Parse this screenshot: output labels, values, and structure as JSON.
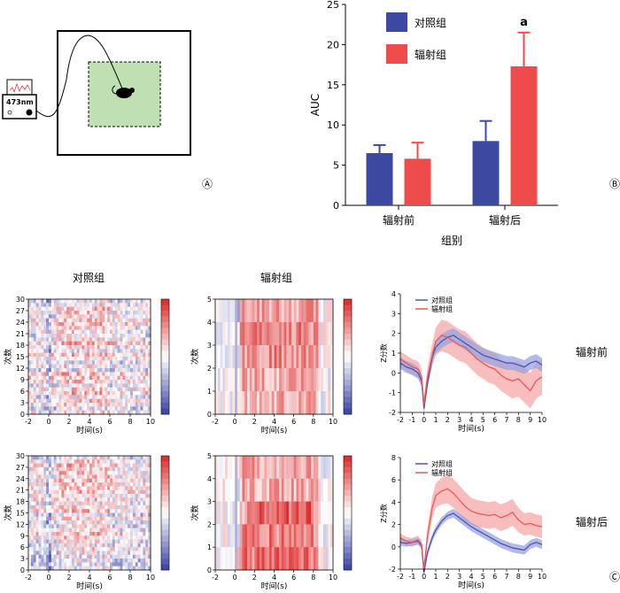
{
  "panels": {
    "A": {
      "panel_label": "Ⓐ",
      "device_label": "473nm",
      "colors": {
        "arena_fill": "#ffffff",
        "zone_fill": "#bfe0b2",
        "outline": "#000000",
        "mouse": "#000000"
      },
      "icons": [
        "recording-device-icon",
        "optic-fiber-icon",
        "mouse-icon",
        "signal-trace-icon"
      ]
    },
    "B": {
      "panel_label": "Ⓑ"
    },
    "C": {
      "panel_label": "Ⓒ",
      "titles": {
        "control": "对照组",
        "radiation": "辐射组"
      },
      "row_labels": [
        "辐射前",
        "辐射后"
      ],
      "heatmap_ylabel": "次数",
      "xlabel": "时间(s)",
      "zscore_ylabel": "Z分数",
      "legend": [
        "对照组",
        "辐射组"
      ]
    }
  },
  "chart_data": [
    {
      "id": "auc-bar",
      "type": "bar",
      "categories": [
        "辐射前",
        "辐射后"
      ],
      "series": [
        {
          "name": "对照组",
          "color": "#3b4aa0",
          "values": [
            6.5,
            8.0
          ],
          "errors": [
            1.0,
            2.5
          ]
        },
        {
          "name": "辐射组",
          "color": "#ee4b4b",
          "values": [
            5.8,
            17.3
          ],
          "errors": [
            2.0,
            4.2
          ]
        }
      ],
      "ylabel": "AUC",
      "xlabel": "组别",
      "ylim": [
        0,
        25
      ],
      "yticks": [
        0,
        5,
        10,
        15,
        20,
        25
      ],
      "annotations": [
        {
          "category": "辐射后",
          "series": "辐射组",
          "text": "a"
        }
      ],
      "legend_position": "top-left"
    },
    {
      "id": "heatmap-control-pre",
      "type": "heatmap",
      "xlabel": "时间(s)",
      "ylabel": "次数",
      "xlim": [
        -2,
        10
      ],
      "ylim": [
        0,
        30
      ],
      "xticks": [
        -2,
        0,
        2,
        4,
        6,
        8,
        10
      ],
      "yticks": [
        0,
        3,
        6,
        9,
        12,
        15,
        18,
        21,
        24,
        27,
        30
      ],
      "rows": 30,
      "cols": 48,
      "seed": 11,
      "pattern": "control",
      "colorbar": [
        "low",
        "high"
      ]
    },
    {
      "id": "heatmap-radiation-pre",
      "type": "heatmap",
      "xlabel": "时间(s)",
      "ylabel": "次数",
      "xlim": [
        -2,
        10
      ],
      "ylim": [
        0,
        5
      ],
      "xticks": [
        -2,
        0,
        2,
        4,
        6,
        8,
        10
      ],
      "yticks": [
        0,
        1,
        2,
        3,
        4,
        5
      ],
      "rows": 5,
      "cols": 48,
      "seed": 23,
      "pattern": "radiation-pre",
      "colorbar": [
        "low",
        "high"
      ]
    },
    {
      "id": "zscore-pre",
      "type": "line",
      "xlabel": "时间(s)",
      "ylabel": "Z分数",
      "xlim": [
        -2,
        10
      ],
      "ylim": [
        -2,
        4
      ],
      "xticks": [
        -2,
        -1,
        0,
        1,
        2,
        3,
        4,
        5,
        6,
        7,
        8,
        9,
        10
      ],
      "yticks": [
        -2,
        -1,
        0,
        1,
        2,
        3,
        4
      ],
      "series": [
        {
          "name": "对照组",
          "color": "#4a55b5",
          "band": "#9aa3dd",
          "x": [
            -2,
            -1.5,
            -1,
            -0.5,
            -0.2,
            0,
            0.3,
            0.7,
            1,
            1.5,
            2,
            2.5,
            3,
            3.5,
            4,
            4.5,
            5,
            5.5,
            6,
            6.5,
            7,
            7.5,
            8,
            8.5,
            9,
            9.5,
            10
          ],
          "y": [
            0.5,
            0.3,
            0.2,
            0.0,
            -0.4,
            -1.8,
            -0.5,
            0.8,
            1.3,
            1.6,
            1.8,
            1.9,
            1.7,
            1.5,
            1.3,
            1.1,
            0.9,
            0.8,
            0.7,
            0.6,
            0.5,
            0.5,
            0.4,
            0.3,
            0.5,
            0.6,
            0.4
          ],
          "err": [
            0.3,
            0.3,
            0.3,
            0.3,
            0.3,
            0.3,
            0.3,
            0.3,
            0.3,
            0.35,
            0.35,
            0.35,
            0.35,
            0.35,
            0.35,
            0.35,
            0.35,
            0.35,
            0.35,
            0.35,
            0.35,
            0.35,
            0.35,
            0.35,
            0.35,
            0.35,
            0.35
          ]
        },
        {
          "name": "辐射组",
          "color": "#ee5555",
          "band": "#f5a8a8",
          "x": [
            -2,
            -1.5,
            -1,
            -0.5,
            -0.2,
            0,
            0.3,
            0.7,
            1,
            1.5,
            2,
            2.5,
            3,
            3.5,
            4,
            4.5,
            5,
            5.5,
            6,
            6.5,
            7,
            7.5,
            8,
            8.5,
            9,
            9.5,
            10
          ],
          "y": [
            0.7,
            0.5,
            0.3,
            0.2,
            -0.2,
            -1.6,
            -0.2,
            0.9,
            1.6,
            1.9,
            1.8,
            1.6,
            1.4,
            1.3,
            1.0,
            0.7,
            0.5,
            0.3,
            0.2,
            -0.1,
            -0.3,
            -0.4,
            -0.3,
            -0.6,
            -0.9,
            -0.4,
            -0.2
          ],
          "err": [
            0.4,
            0.4,
            0.4,
            0.4,
            0.4,
            0.4,
            0.5,
            0.6,
            0.7,
            0.8,
            0.8,
            0.8,
            0.8,
            0.8,
            0.8,
            0.8,
            0.8,
            0.8,
            0.8,
            0.8,
            0.8,
            0.9,
            0.9,
            0.9,
            0.9,
            0.9,
            0.9
          ]
        }
      ]
    },
    {
      "id": "heatmap-control-post",
      "type": "heatmap",
      "xlabel": "时间(s)",
      "ylabel": "次数",
      "xlim": [
        -2,
        10
      ],
      "ylim": [
        0,
        30
      ],
      "xticks": [
        -2,
        0,
        2,
        4,
        6,
        8,
        10
      ],
      "yticks": [
        0,
        3,
        6,
        9,
        12,
        15,
        18,
        21,
        24,
        27,
        30
      ],
      "rows": 30,
      "cols": 48,
      "seed": 37,
      "pattern": "control",
      "colorbar": [
        "low",
        "high"
      ]
    },
    {
      "id": "heatmap-radiation-post",
      "type": "heatmap",
      "xlabel": "时间(s)",
      "ylabel": "次数",
      "xlim": [
        -2,
        10
      ],
      "ylim": [
        0,
        5
      ],
      "xticks": [
        -2,
        0,
        2,
        4,
        6,
        8,
        10
      ],
      "yticks": [
        0,
        1,
        2,
        3,
        4,
        5
      ],
      "rows": 5,
      "cols": 48,
      "seed": 51,
      "pattern": "radiation-post",
      "colorbar": [
        "low",
        "high"
      ]
    },
    {
      "id": "zscore-post",
      "type": "line",
      "xlabel": "时间(s)",
      "ylabel": "Z分数",
      "xlim": [
        -2,
        10
      ],
      "ylim": [
        -2,
        8
      ],
      "xticks": [
        -2,
        -1,
        0,
        1,
        2,
        3,
        4,
        5,
        6,
        7,
        8,
        9,
        10
      ],
      "yticks": [
        -2,
        0,
        2,
        4,
        6,
        8
      ],
      "series": [
        {
          "name": "对照组",
          "color": "#4a55b5",
          "band": "#9aa3dd",
          "x": [
            -2,
            -1.5,
            -1,
            -0.5,
            -0.2,
            0,
            0.3,
            0.7,
            1,
            1.5,
            2,
            2.5,
            3,
            3.5,
            4,
            4.5,
            5,
            5.5,
            6,
            6.5,
            7,
            7.5,
            8,
            8.5,
            9,
            9.5,
            10
          ],
          "y": [
            0.4,
            0.3,
            0.4,
            0.5,
            0.1,
            -2.3,
            -0.5,
            0.8,
            1.5,
            2.3,
            2.8,
            3.0,
            2.6,
            2.2,
            1.8,
            1.5,
            1.2,
            0.9,
            0.6,
            0.3,
            0.1,
            -0.1,
            -0.2,
            -0.3,
            0.2,
            0.4,
            0.2
          ],
          "err": [
            0.3,
            0.3,
            0.3,
            0.3,
            0.3,
            0.35,
            0.35,
            0.35,
            0.35,
            0.35,
            0.35,
            0.4,
            0.4,
            0.4,
            0.4,
            0.4,
            0.4,
            0.4,
            0.4,
            0.4,
            0.4,
            0.4,
            0.4,
            0.4,
            0.4,
            0.4,
            0.4
          ]
        },
        {
          "name": "辐射组",
          "color": "#ee5555",
          "band": "#f5a8a8",
          "x": [
            -2,
            -1.5,
            -1,
            -0.5,
            -0.2,
            0,
            0.3,
            0.7,
            1,
            1.5,
            2,
            2.5,
            3,
            3.5,
            4,
            4.5,
            5,
            5.5,
            6,
            6.5,
            7,
            7.5,
            8,
            8.5,
            9,
            9.5,
            10
          ],
          "y": [
            0.8,
            0.5,
            0.4,
            0.6,
            0.2,
            -2.0,
            1.0,
            3.5,
            4.6,
            5.0,
            5.2,
            4.8,
            4.2,
            3.6,
            3.2,
            3.0,
            2.9,
            2.8,
            2.9,
            2.6,
            2.8,
            3.1,
            2.4,
            2.0,
            2.1,
            1.9,
            1.8
          ],
          "err": [
            0.4,
            0.4,
            0.4,
            0.4,
            0.4,
            0.5,
            0.8,
            1.0,
            1.1,
            1.2,
            1.3,
            1.3,
            1.3,
            1.3,
            1.2,
            1.2,
            1.2,
            1.2,
            1.2,
            1.2,
            1.2,
            1.2,
            1.1,
            1.0,
            1.0,
            1.0,
            1.0
          ]
        }
      ]
    }
  ]
}
